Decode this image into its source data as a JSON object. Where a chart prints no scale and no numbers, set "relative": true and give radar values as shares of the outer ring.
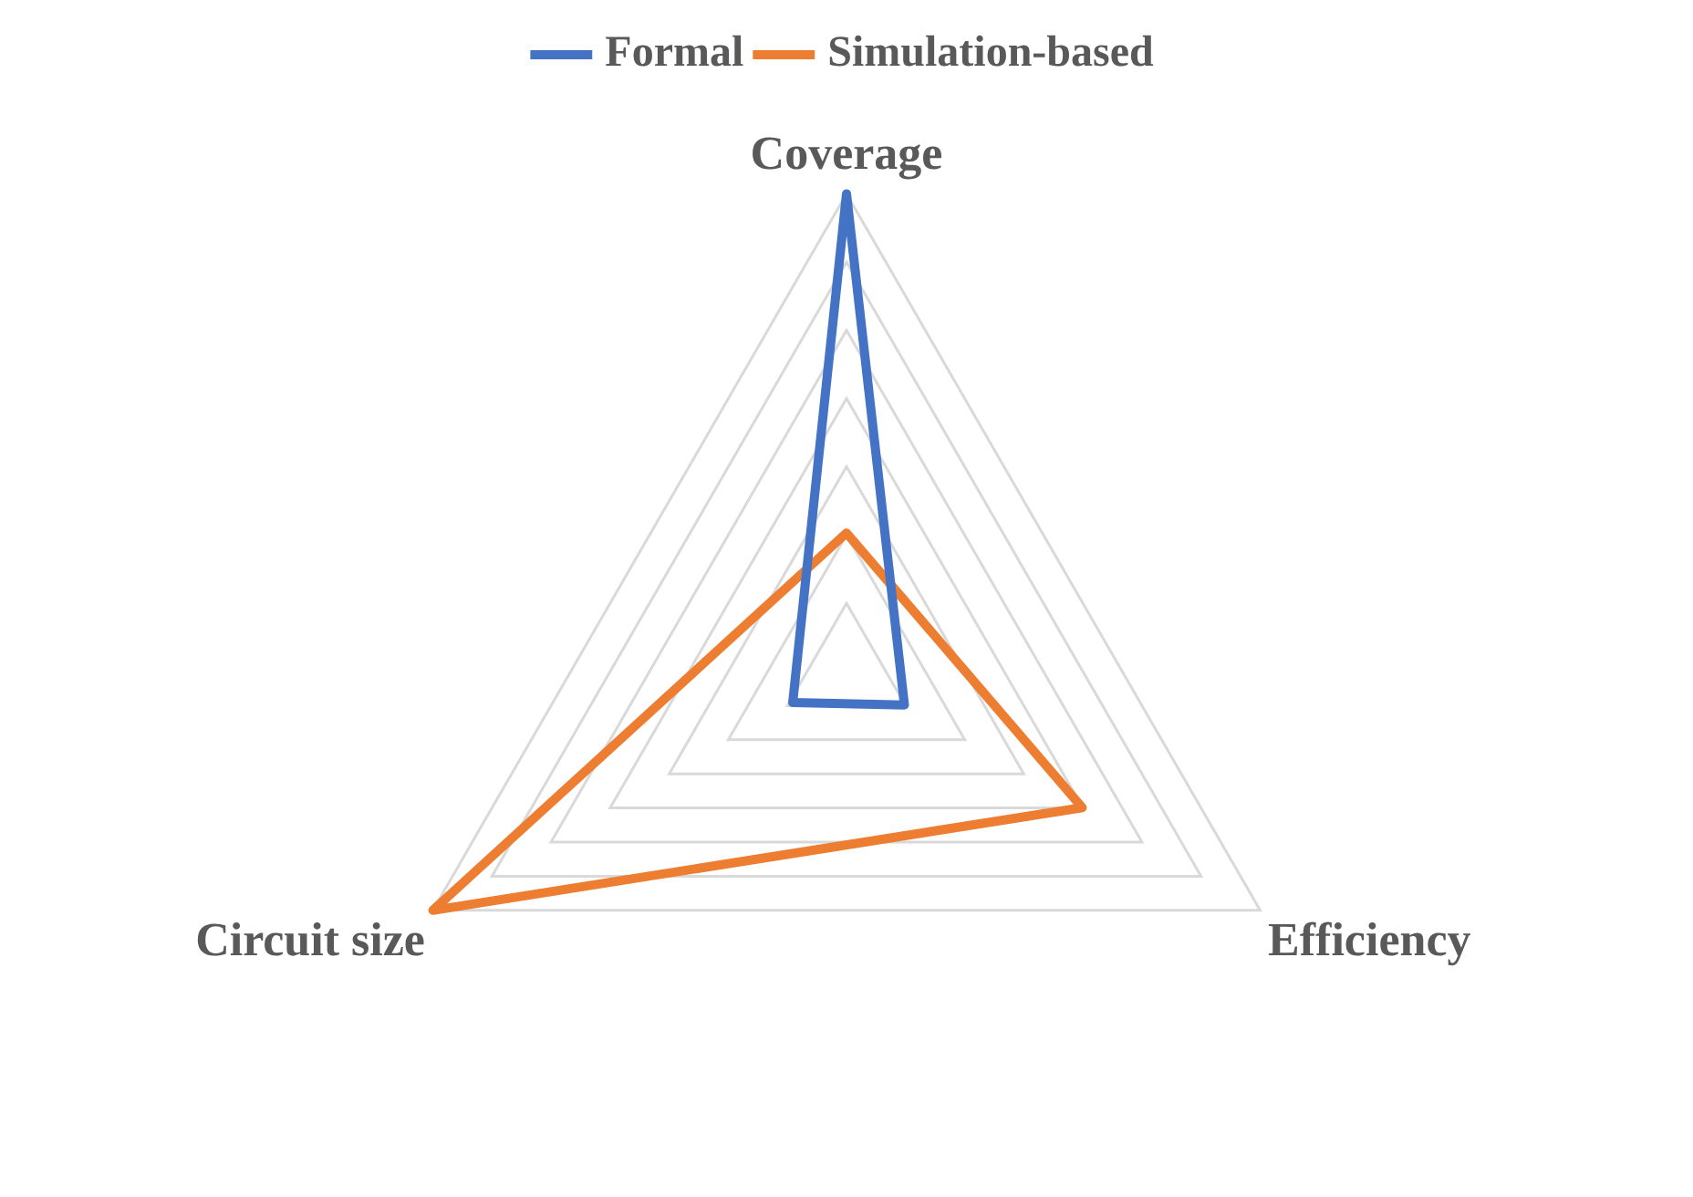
{
  "chart_data": {
    "type": "radar",
    "relative": true,
    "categories": [
      "Coverage",
      "Efficiency",
      "Circuit size"
    ],
    "series": [
      {
        "name": "Formal",
        "color": "#4472c4",
        "values": [
          1,
          0.14,
          0.13
        ]
      },
      {
        "name": "Simulation-based",
        "color": "#ed7d31",
        "values": [
          0.29,
          0.57,
          1
        ]
      }
    ],
    "legend": "top",
    "grid": true,
    "marker": "none",
    "line_style": "solid"
  }
}
